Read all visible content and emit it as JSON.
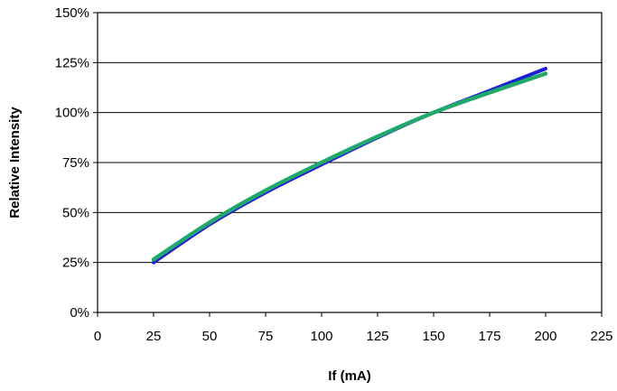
{
  "chart_data": {
    "type": "line",
    "title": "",
    "xlabel": "If (mA)",
    "ylabel": "Relative Intensity",
    "xlim": [
      0,
      225
    ],
    "ylim": [
      0,
      150
    ],
    "x_ticks": [
      0,
      25,
      50,
      75,
      100,
      125,
      150,
      175,
      200,
      225
    ],
    "x_tick_labels": [
      "0",
      "25",
      "50",
      "75",
      "100",
      "125",
      "150",
      "175",
      "200",
      "225"
    ],
    "y_ticks": [
      0,
      25,
      50,
      75,
      100,
      125,
      150
    ],
    "y_tick_labels": [
      "0%",
      "25%",
      "50%",
      "75%",
      "100%",
      "125%",
      "150%"
    ],
    "grid": {
      "horizontal": true,
      "vertical": false
    },
    "legend": "none",
    "series": [
      {
        "color": "#1f1fd6",
        "x": [
          25,
          50,
          75,
          100,
          125,
          150,
          175,
          200
        ],
        "y": [
          25,
          44,
          60,
          74,
          87.5,
          100,
          111,
          122
        ]
      },
      {
        "color": "#22a86a",
        "x": [
          25,
          50,
          75,
          100,
          125,
          150,
          175,
          200
        ],
        "y": [
          26.5,
          45,
          61,
          75,
          88,
          100,
          110,
          119.5
        ]
      }
    ]
  }
}
